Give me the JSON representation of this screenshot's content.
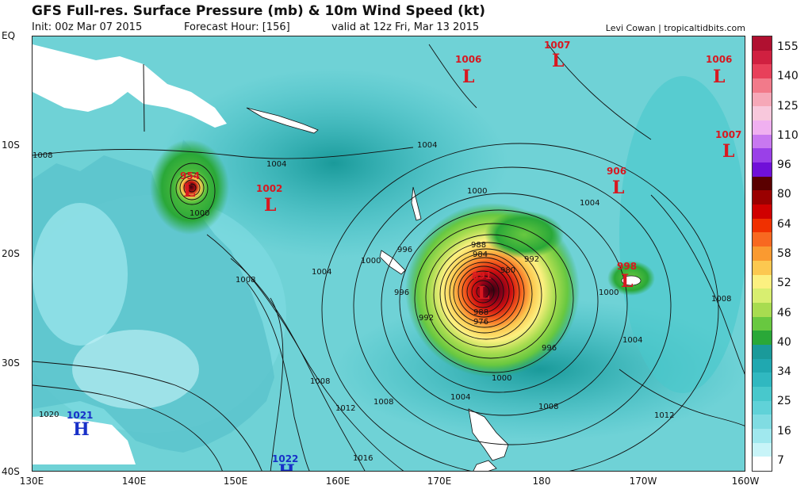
{
  "header": {
    "title": "GFS Full-res. Surface Pressure (mb) & 10m Wind Speed (kt)",
    "init": "Init: 00z Mar 07 2015",
    "forecast_hour": "Forecast Hour: [156]",
    "valid": "valid at 12z Fri, Mar 13 2015",
    "credit": "Levi Cowan | tropicaltidbits.com"
  },
  "axes": {
    "lat_labels": [
      "EQ",
      "10S",
      "20S",
      "30S",
      "40S"
    ],
    "lon_labels": [
      "130E",
      "140E",
      "150E",
      "160E",
      "170E",
      "180",
      "170W",
      "160W"
    ]
  },
  "colorbar": {
    "labels": [
      "155",
      "140",
      "125",
      "110",
      "96",
      "80",
      "64",
      "58",
      "52",
      "46",
      "40",
      "34",
      "25",
      "16",
      "7"
    ],
    "colors": [
      "#b01030",
      "#d02040",
      "#e8405a",
      "#f27a8a",
      "#f6a8b8",
      "#f8c8dc",
      "#f0b0f0",
      "#c878f0",
      "#9a40e8",
      "#7010d8",
      "#5a0000",
      "#9a0000",
      "#d00000",
      "#f03000",
      "#f86820",
      "#fa9a30",
      "#fcc850",
      "#fcf080",
      "#d8ee70",
      "#a8dc50",
      "#68c840",
      "#2aa838",
      "#1a9a9a",
      "#20a8b0",
      "#30b8c0",
      "#48c8cc",
      "#60d2d8",
      "#80dce2",
      "#a0e8ee",
      "#c8f4f8",
      "#ffffff"
    ]
  },
  "systems": [
    {
      "type": "L",
      "value": "1006",
      "kind": "low"
    },
    {
      "type": "L",
      "value": "1007",
      "kind": "low"
    },
    {
      "type": "L",
      "value": "1006",
      "kind": "low"
    },
    {
      "type": "L",
      "value": "1007",
      "kind": "low"
    },
    {
      "type": "L",
      "value": "954",
      "kind": "low"
    },
    {
      "type": "L",
      "value": "1002",
      "kind": "low"
    },
    {
      "type": "L",
      "value": "906",
      "kind": "low"
    },
    {
      "type": "L",
      "value": "891",
      "kind": "low"
    },
    {
      "type": "L",
      "value": "998",
      "kind": "low"
    },
    {
      "type": "H",
      "value": "1021",
      "kind": "high"
    },
    {
      "type": "H",
      "value": "1022",
      "kind": "high"
    }
  ],
  "isobar_labels": [
    "1008",
    "1004",
    "1000",
    "1004",
    "1004",
    "1000",
    "996",
    "996",
    "1000",
    "988",
    "984",
    "992",
    "980",
    "988",
    "976",
    "992",
    "996",
    "1000",
    "1000",
    "1008",
    "1004",
    "1008",
    "1004",
    "1008",
    "1012",
    "1008",
    "1004",
    "1008",
    "1012",
    "1016",
    "1020"
  ],
  "colors": {
    "low_marker": "#d81820",
    "high_marker": "#1830c8",
    "ocean_base": "#6fd2d6",
    "land": "#ffffff"
  }
}
